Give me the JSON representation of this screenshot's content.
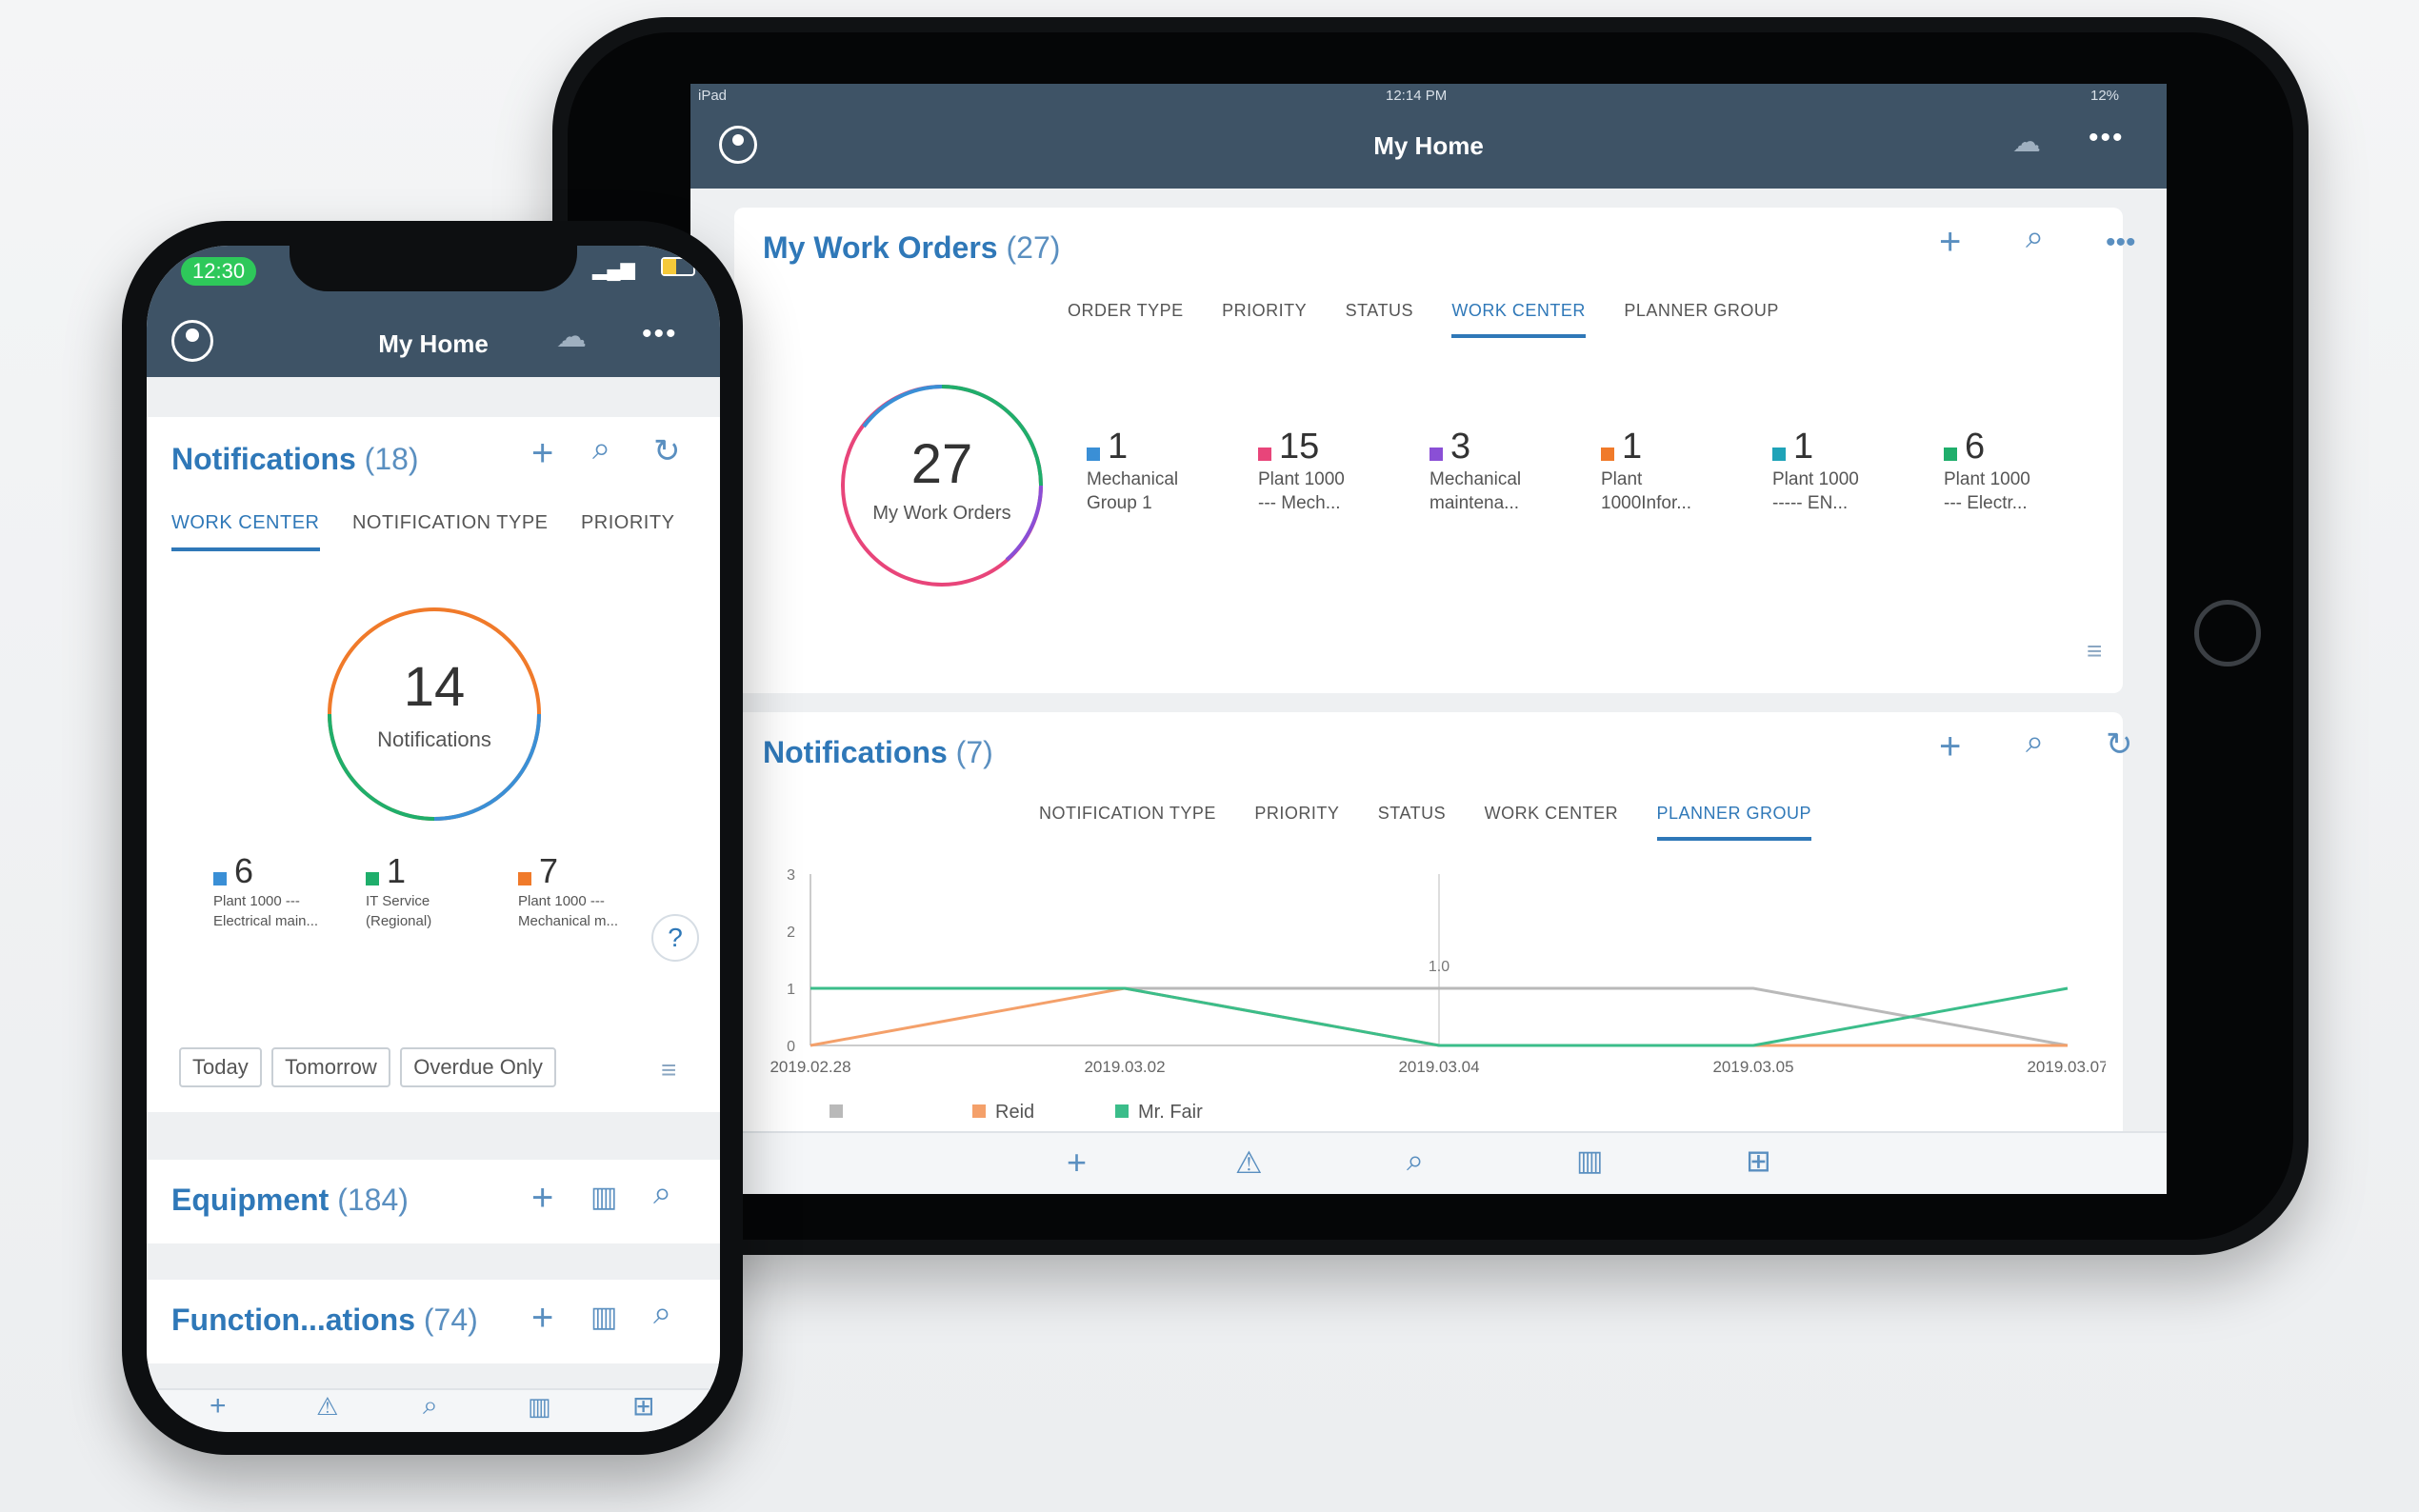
{
  "tablet": {
    "status": {
      "left": "iPad",
      "time": "12:14 PM",
      "battery": "12%"
    },
    "nav": {
      "title": "My Home",
      "icons": [
        "user-icon",
        "cloud-sync-icon",
        "more-icon"
      ]
    },
    "work_orders": {
      "title": "My Work Orders",
      "count": "(27)",
      "tabs": [
        "ORDER TYPE",
        "PRIORITY",
        "STATUS",
        "WORK CENTER",
        "PLANNER GROUP"
      ],
      "active_tab": "WORK CENTER",
      "donut_value": "27",
      "donut_label": "My Work Orders",
      "legend": [
        {
          "num": "1",
          "label": "Mechanical\nGroup 1",
          "color": "#3a8fd6"
        },
        {
          "num": "15",
          "label": "Plant 1000\n--- Mech...",
          "color": "#e8457a"
        },
        {
          "num": "3",
          "label": "Mechanical\nmaintena...",
          "color": "#8a4fd6"
        },
        {
          "num": "1",
          "label": "Plant\n1000Infor...",
          "color": "#f07a2a"
        },
        {
          "num": "1",
          "label": "Plant 1000\n----- EN...",
          "color": "#1fa3b8"
        },
        {
          "num": "6",
          "label": "Plant 1000\n--- Electr...",
          "color": "#1fae6b"
        }
      ]
    },
    "notifications": {
      "title": "Notifications",
      "count": "(7)",
      "tabs": [
        "NOTIFICATION TYPE",
        "PRIORITY",
        "STATUS",
        "WORK CENTER",
        "PLANNER GROUP"
      ],
      "active_tab": "PLANNER GROUP",
      "chart_data": {
        "type": "line",
        "x": [
          "2019.02.28",
          "2019.03.02",
          "2019.03.04",
          "2019.03.05",
          "2019.03.07"
        ],
        "ylim": [
          0,
          3
        ],
        "yticks": [
          "0",
          "1",
          "2",
          "3"
        ],
        "annotation": "1.0",
        "series": [
          {
            "name": "",
            "color": "#b9b9b9",
            "values": [
              1,
              1,
              1,
              1,
              0
            ]
          },
          {
            "name": "Reid",
            "color": "#f4a06a",
            "values": [
              0,
              1,
              0,
              0,
              0
            ]
          },
          {
            "name": "Mr. Fair",
            "color": "#3bbd8a",
            "values": [
              1,
              1,
              0,
              0,
              1
            ]
          }
        ],
        "legend": [
          "",
          "Reid",
          "Mr. Fair"
        ]
      }
    },
    "bottom_icons": [
      "plus-icon",
      "warning-icon",
      "search-icon",
      "map-icon",
      "grid-icon"
    ]
  },
  "phone": {
    "status": {
      "time": "12:30"
    },
    "nav": {
      "title": "My Home"
    },
    "notifications": {
      "title": "Notifications",
      "count": "(18)",
      "tabs": [
        "WORK CENTER",
        "NOTIFICATION TYPE",
        "PRIORITY"
      ],
      "donut_value": "14",
      "donut_label": "Notifications",
      "legend": [
        {
          "num": "6",
          "label": "Plant 1000 ---\nElectrical main...",
          "color": "#3a8fd6"
        },
        {
          "num": "1",
          "label": "IT Service\n(Regional)",
          "color": "#1fae6b"
        },
        {
          "num": "7",
          "label": "Plant 1000 ---\nMechanical m...",
          "color": "#f07a2a"
        }
      ],
      "filters": [
        "Today",
        "Tomorrow",
        "Overdue Only"
      ]
    },
    "equipment": {
      "title": "Equipment",
      "count": "(184)"
    },
    "functional": {
      "title": "Function...ations",
      "count": "(74)"
    }
  }
}
